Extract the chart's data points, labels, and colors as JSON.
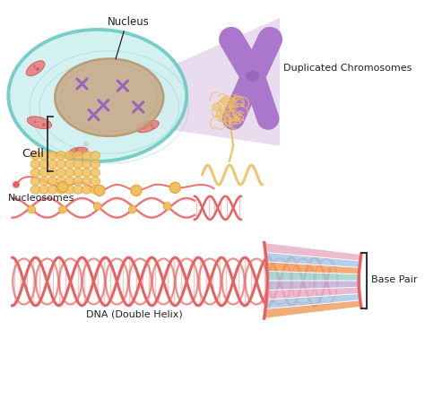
{
  "bg_color": "#ffffff",
  "labels": {
    "nucleus": "Nucleus",
    "cell": "Cell",
    "nucleosomes": "Nucleosomes",
    "duplicated_chromosomes": "Duplicated Chromosomes",
    "dna": "DNA (Double Helix)",
    "base_pair": "Base Pair"
  },
  "colors": {
    "cell_outer": "#6ecac4",
    "cell_fill": "#d0f0f0",
    "cell_inner_line": "#7dd4cc",
    "nucleus_fill": "#c8aa88",
    "nucleus_border": "#b8986a",
    "chromosome_purple": "#9966bb",
    "chromosome_fill": "#aa77cc",
    "nucleosome_gold": "#f0c060",
    "nucleosome_dark": "#e0a030",
    "dna_red": "#e86060",
    "dna_lighter": "#f09090",
    "base_orange": "#f0a060",
    "base_blue": "#a8c8e8",
    "base_pink": "#e8b0c8",
    "base_lavender": "#c0b0d8",
    "base_teal": "#a0d0d0",
    "purple_cone": "#c8a8d8",
    "organelle_pink": "#e87878",
    "organelle_dark": "#cc5555",
    "label_color": "#222222",
    "gold_strand": "#e8b840"
  }
}
